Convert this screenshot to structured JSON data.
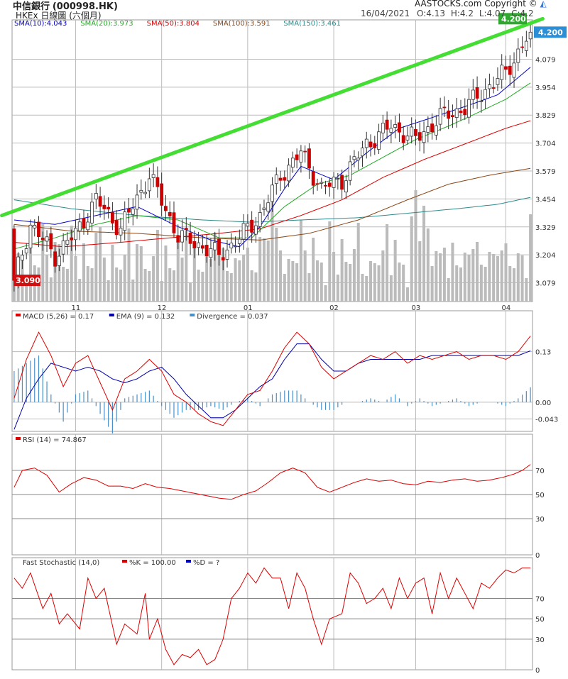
{
  "header": {
    "stock_name": "中信銀行",
    "stock_code": "(000998.HK)",
    "exchange_line": "HKEx  日線圖 (六個月)",
    "copyright": "AASTOCKS.com Copyright ©",
    "date": "16/04/2021",
    "open_label": "O:4.13",
    "high_label": "H:4.2",
    "low_label": "L:4.07",
    "close_label": "C:4.2"
  },
  "colors": {
    "up": "#ffffff",
    "down": "#cc0000",
    "wick": "#333333",
    "volume": "#bbbbbb",
    "grid": "#bcbcbc",
    "trendline": "#44dd33",
    "sma10": "#0000cc",
    "sma20": "#22aa22",
    "sma50": "#dd0000",
    "sma100": "#8b4513",
    "sma150": "#2e8b8b",
    "macd": "#dd0000",
    "ema": "#0000aa",
    "divergence": "#4a90c8",
    "rsi": "#dd0000",
    "stoch": "#dd0000"
  },
  "chart_data": [
    {
      "type": "candlestick",
      "title": "",
      "legend": [
        {
          "label": "SMA(10):4.043",
          "color": "#0000cc"
        },
        {
          "label": "SMA(20):3.973",
          "color": "#22aa22"
        },
        {
          "label": "SMA(50):3.804",
          "color": "#dd0000"
        },
        {
          "label": "SMA(100):3.591",
          "color": "#8b4513"
        },
        {
          "label": "SMA(150):3.461",
          "color": "#2e8b8b"
        }
      ],
      "x_tick_labels": [
        "11",
        "12",
        "01",
        "02",
        "03",
        "04"
      ],
      "x_tick_days": [
        15,
        36,
        57,
        78,
        98,
        120
      ],
      "y_ticks": [
        3.079,
        3.204,
        3.329,
        3.454,
        3.579,
        3.704,
        3.829,
        3.954,
        4.079
      ],
      "ylim": [
        2.995,
        4.255
      ],
      "last_price_label": "4.200",
      "first_price_label": "3.090",
      "trendline": {
        "start": [
          -3,
          3.38
        ],
        "end": [
          129,
          4.26
        ]
      },
      "bars": 127,
      "close_path": [
        [
          0,
          3.09
        ],
        [
          4,
          3.34
        ],
        [
          10,
          3.2
        ],
        [
          15,
          3.3
        ],
        [
          20,
          3.45
        ],
        [
          26,
          3.32
        ],
        [
          33,
          3.56
        ],
        [
          40,
          3.29
        ],
        [
          45,
          3.25
        ],
        [
          50,
          3.2
        ],
        [
          55,
          3.28
        ],
        [
          60,
          3.38
        ],
        [
          65,
          3.56
        ],
        [
          70,
          3.66
        ],
        [
          75,
          3.5
        ],
        [
          80,
          3.54
        ],
        [
          86,
          3.7
        ],
        [
          92,
          3.78
        ],
        [
          98,
          3.72
        ],
        [
          104,
          3.82
        ],
        [
          110,
          3.86
        ],
        [
          116,
          3.96
        ],
        [
          120,
          4.02
        ],
        [
          124,
          4.14
        ],
        [
          126,
          4.2
        ]
      ],
      "sma_paths": {
        "sma10": [
          [
            0,
            3.36
          ],
          [
            10,
            3.34
          ],
          [
            20,
            3.38
          ],
          [
            30,
            3.42
          ],
          [
            40,
            3.33
          ],
          [
            48,
            3.27
          ],
          [
            55,
            3.24
          ],
          [
            60,
            3.33
          ],
          [
            66,
            3.5
          ],
          [
            70,
            3.6
          ],
          [
            78,
            3.54
          ],
          [
            86,
            3.66
          ],
          [
            94,
            3.77
          ],
          [
            104,
            3.83
          ],
          [
            112,
            3.88
          ],
          [
            118,
            3.92
          ],
          [
            126,
            4.043
          ]
        ],
        "sma20": [
          [
            0,
            3.23
          ],
          [
            10,
            3.28
          ],
          [
            20,
            3.34
          ],
          [
            30,
            3.38
          ],
          [
            40,
            3.36
          ],
          [
            50,
            3.28
          ],
          [
            58,
            3.28
          ],
          [
            66,
            3.42
          ],
          [
            74,
            3.52
          ],
          [
            82,
            3.56
          ],
          [
            90,
            3.64
          ],
          [
            98,
            3.72
          ],
          [
            106,
            3.78
          ],
          [
            112,
            3.83
          ],
          [
            120,
            3.9
          ],
          [
            126,
            3.973
          ]
        ],
        "sma50": [
          [
            0,
            3.26
          ],
          [
            12,
            3.24
          ],
          [
            26,
            3.26
          ],
          [
            38,
            3.28
          ],
          [
            50,
            3.3
          ],
          [
            60,
            3.32
          ],
          [
            70,
            3.38
          ],
          [
            80,
            3.45
          ],
          [
            90,
            3.55
          ],
          [
            100,
            3.63
          ],
          [
            110,
            3.7
          ],
          [
            120,
            3.77
          ],
          [
            126,
            3.804
          ]
        ],
        "sma100": [
          [
            0,
            3.34
          ],
          [
            14,
            3.31
          ],
          [
            30,
            3.3
          ],
          [
            46,
            3.28
          ],
          [
            60,
            3.27
          ],
          [
            72,
            3.3
          ],
          [
            84,
            3.36
          ],
          [
            96,
            3.45
          ],
          [
            106,
            3.52
          ],
          [
            116,
            3.56
          ],
          [
            126,
            3.591
          ]
        ],
        "sma150": [
          [
            0,
            3.45
          ],
          [
            14,
            3.41
          ],
          [
            30,
            3.38
          ],
          [
            46,
            3.36
          ],
          [
            58,
            3.35
          ],
          [
            70,
            3.36
          ],
          [
            84,
            3.37
          ],
          [
            96,
            3.39
          ],
          [
            108,
            3.41
          ],
          [
            118,
            3.43
          ],
          [
            126,
            3.461
          ]
        ]
      }
    },
    {
      "type": "line",
      "title": "",
      "legend": [
        {
          "label": "MACD (5,26) = 0.17",
          "color": "#dd0000"
        },
        {
          "label": "EMA (9) = 0.132",
          "color": "#0000aa"
        },
        {
          "label": "Divergence = 0.037",
          "color": "#4a90c8"
        }
      ],
      "y_ticks": [
        0.13,
        0.0,
        -0.043
      ],
      "y_tick_labels": [
        "0.13",
        "0.00",
        "-0.043"
      ],
      "ylim": [
        -0.075,
        0.235
      ],
      "series": {
        "macd": [
          [
            0,
            0.01
          ],
          [
            3,
            0.11
          ],
          [
            6,
            0.18
          ],
          [
            9,
            0.12
          ],
          [
            12,
            0.04
          ],
          [
            15,
            0.1
          ],
          [
            18,
            0.12
          ],
          [
            21,
            0.05
          ],
          [
            24,
            -0.02
          ],
          [
            27,
            0.06
          ],
          [
            30,
            0.08
          ],
          [
            33,
            0.11
          ],
          [
            36,
            0.08
          ],
          [
            39,
            0.02
          ],
          [
            42,
            0.0
          ],
          [
            45,
            -0.03
          ],
          [
            48,
            -0.05
          ],
          [
            51,
            -0.06
          ],
          [
            54,
            -0.02
          ],
          [
            57,
            0.02
          ],
          [
            60,
            0.03
          ],
          [
            63,
            0.08
          ],
          [
            66,
            0.14
          ],
          [
            69,
            0.18
          ],
          [
            72,
            0.15
          ],
          [
            75,
            0.09
          ],
          [
            78,
            0.06
          ],
          [
            81,
            0.08
          ],
          [
            84,
            0.1
          ],
          [
            87,
            0.12
          ],
          [
            90,
            0.11
          ],
          [
            93,
            0.13
          ],
          [
            96,
            0.1
          ],
          [
            99,
            0.12
          ],
          [
            102,
            0.11
          ],
          [
            105,
            0.12
          ],
          [
            108,
            0.13
          ],
          [
            111,
            0.11
          ],
          [
            114,
            0.12
          ],
          [
            117,
            0.12
          ],
          [
            120,
            0.11
          ],
          [
            123,
            0.13
          ],
          [
            126,
            0.17
          ]
        ],
        "ema": [
          [
            0,
            -0.07
          ],
          [
            3,
            0.01
          ],
          [
            6,
            0.06
          ],
          [
            9,
            0.1
          ],
          [
            12,
            0.09
          ],
          [
            15,
            0.08
          ],
          [
            18,
            0.09
          ],
          [
            21,
            0.08
          ],
          [
            24,
            0.06
          ],
          [
            27,
            0.05
          ],
          [
            30,
            0.06
          ],
          [
            33,
            0.08
          ],
          [
            36,
            0.09
          ],
          [
            39,
            0.06
          ],
          [
            42,
            0.02
          ],
          [
            45,
            -0.01
          ],
          [
            48,
            -0.04
          ],
          [
            51,
            -0.04
          ],
          [
            54,
            -0.02
          ],
          [
            57,
            0.01
          ],
          [
            60,
            0.04
          ],
          [
            63,
            0.06
          ],
          [
            66,
            0.11
          ],
          [
            69,
            0.15
          ],
          [
            72,
            0.15
          ],
          [
            75,
            0.11
          ],
          [
            78,
            0.08
          ],
          [
            81,
            0.08
          ],
          [
            84,
            0.1
          ],
          [
            87,
            0.11
          ],
          [
            90,
            0.11
          ],
          [
            93,
            0.11
          ],
          [
            96,
            0.11
          ],
          [
            99,
            0.11
          ],
          [
            102,
            0.12
          ],
          [
            105,
            0.12
          ],
          [
            108,
            0.12
          ],
          [
            111,
            0.12
          ],
          [
            114,
            0.12
          ],
          [
            117,
            0.12
          ],
          [
            120,
            0.12
          ],
          [
            123,
            0.12
          ],
          [
            126,
            0.132
          ]
        ],
        "divergence_amplitude": 0.05
      }
    },
    {
      "type": "line",
      "title": "",
      "legend": [
        {
          "label": "RSI (14)  = 74.867",
          "color": "#dd0000"
        }
      ],
      "y_ticks": [
        70,
        50,
        30,
        0
      ],
      "ylim": [
        0,
        100
      ],
      "series": {
        "rsi": [
          [
            0,
            56
          ],
          [
            2,
            70
          ],
          [
            5,
            72
          ],
          [
            8,
            66
          ],
          [
            11,
            52
          ],
          [
            14,
            59
          ],
          [
            17,
            64
          ],
          [
            20,
            62
          ],
          [
            23,
            57
          ],
          [
            26,
            57
          ],
          [
            29,
            55
          ],
          [
            32,
            59
          ],
          [
            35,
            56
          ],
          [
            38,
            55
          ],
          [
            41,
            53
          ],
          [
            44,
            51
          ],
          [
            47,
            49
          ],
          [
            50,
            47
          ],
          [
            53,
            46
          ],
          [
            56,
            50
          ],
          [
            59,
            53
          ],
          [
            62,
            60
          ],
          [
            65,
            68
          ],
          [
            68,
            72
          ],
          [
            71,
            68
          ],
          [
            74,
            56
          ],
          [
            77,
            52
          ],
          [
            80,
            56
          ],
          [
            83,
            60
          ],
          [
            86,
            63
          ],
          [
            89,
            61
          ],
          [
            92,
            62
          ],
          [
            95,
            59
          ],
          [
            98,
            58
          ],
          [
            101,
            61
          ],
          [
            104,
            60
          ],
          [
            107,
            62
          ],
          [
            110,
            63
          ],
          [
            113,
            61
          ],
          [
            116,
            62
          ],
          [
            119,
            64
          ],
          [
            122,
            67
          ],
          [
            124,
            70
          ],
          [
            126,
            74.867
          ]
        ]
      }
    },
    {
      "type": "line",
      "title": "",
      "legend": [
        {
          "label": "Fast Stochastic (14,0)",
          "color": "#000000"
        },
        {
          "label": "%K = 100.00",
          "color": "#dd0000"
        },
        {
          "label": "%D = ?",
          "color": "#0000cc"
        }
      ],
      "y_ticks": [
        70,
        50,
        30,
        0
      ],
      "ylim": [
        0,
        110
      ],
      "series": {
        "k": [
          [
            0,
            90
          ],
          [
            2,
            80
          ],
          [
            4,
            95
          ],
          [
            7,
            60
          ],
          [
            9,
            75
          ],
          [
            11,
            45
          ],
          [
            13,
            55
          ],
          [
            16,
            40
          ],
          [
            18,
            90
          ],
          [
            20,
            70
          ],
          [
            22,
            80
          ],
          [
            25,
            25
          ],
          [
            27,
            45
          ],
          [
            30,
            35
          ],
          [
            32,
            75
          ],
          [
            33,
            30
          ],
          [
            35,
            50
          ],
          [
            37,
            20
          ],
          [
            39,
            5
          ],
          [
            41,
            15
          ],
          [
            43,
            12
          ],
          [
            45,
            20
          ],
          [
            47,
            5
          ],
          [
            49,
            10
          ],
          [
            51,
            30
          ],
          [
            53,
            70
          ],
          [
            55,
            80
          ],
          [
            57,
            95
          ],
          [
            59,
            85
          ],
          [
            61,
            100
          ],
          [
            63,
            90
          ],
          [
            65,
            90
          ],
          [
            67,
            60
          ],
          [
            69,
            95
          ],
          [
            71,
            80
          ],
          [
            73,
            50
          ],
          [
            75,
            25
          ],
          [
            77,
            50
          ],
          [
            80,
            55
          ],
          [
            82,
            95
          ],
          [
            84,
            85
          ],
          [
            86,
            65
          ],
          [
            88,
            70
          ],
          [
            90,
            80
          ],
          [
            92,
            60
          ],
          [
            94,
            90
          ],
          [
            96,
            70
          ],
          [
            98,
            85
          ],
          [
            100,
            90
          ],
          [
            102,
            55
          ],
          [
            104,
            95
          ],
          [
            106,
            70
          ],
          [
            108,
            90
          ],
          [
            110,
            75
          ],
          [
            112,
            60
          ],
          [
            114,
            85
          ],
          [
            116,
            80
          ],
          [
            118,
            90
          ],
          [
            120,
            98
          ],
          [
            122,
            95
          ],
          [
            124,
            100
          ],
          [
            126,
            100
          ]
        ]
      }
    }
  ]
}
